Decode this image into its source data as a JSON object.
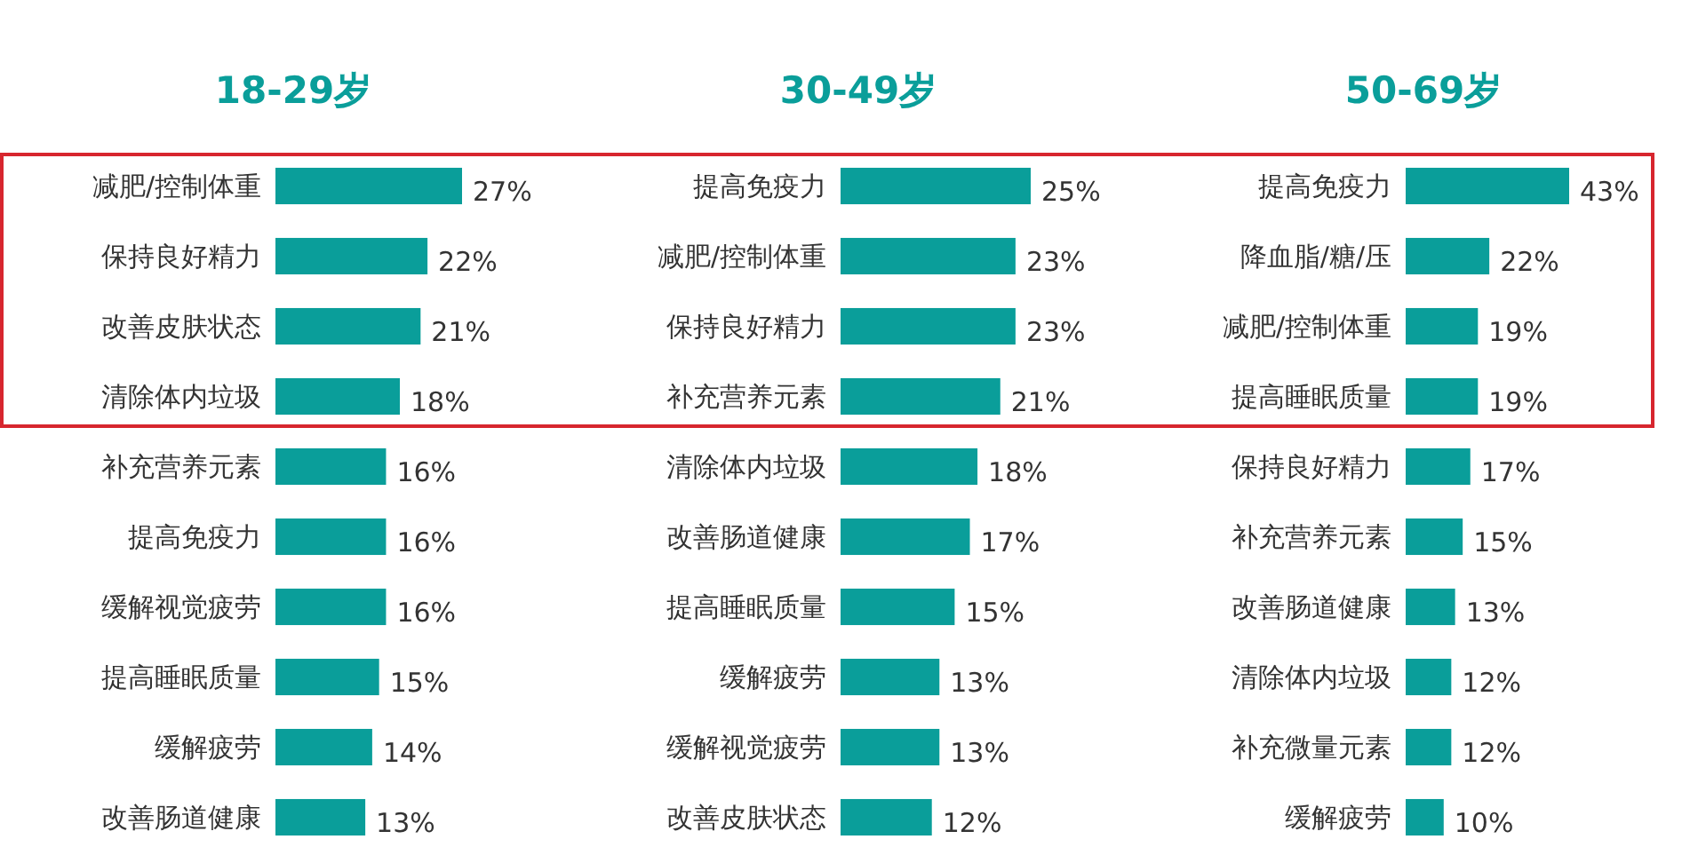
{
  "chart_data": [
    {
      "type": "bar",
      "orientation": "horizontal",
      "title": "18-29岁",
      "categories": [
        "减肥/控制体重",
        "保持良好精力",
        "改善皮肤状态",
        "清除体内垃圾",
        "补充营养元素",
        "提高免疫力",
        "缓解视觉疲劳",
        "提高睡眠质量",
        "缓解疲劳",
        "改善肠道健康"
      ],
      "values": [
        27,
        22,
        21,
        18,
        16,
        16,
        16,
        15,
        14,
        13
      ],
      "value_labels": [
        "27%",
        "22%",
        "21%",
        "18%",
        "16%",
        "16%",
        "16%",
        "15%",
        "14%",
        "13%"
      ],
      "color": "#0a9e9a"
    },
    {
      "type": "bar",
      "orientation": "horizontal",
      "title": "30-49岁",
      "categories": [
        "提高免疫力",
        "减肥/控制体重",
        "保持良好精力",
        "补充营养元素",
        "清除体内垃圾",
        "改善肠道健康",
        "提高睡眠质量",
        "缓解疲劳",
        "缓解视觉疲劳",
        "改善皮肤状态"
      ],
      "values": [
        25,
        23,
        23,
        21,
        18,
        17,
        15,
        13,
        13,
        12
      ],
      "value_labels": [
        "25%",
        "23%",
        "23%",
        "21%",
        "18%",
        "17%",
        "15%",
        "13%",
        "13%",
        "12%"
      ],
      "color": "#0a9e9a"
    },
    {
      "type": "bar",
      "orientation": "horizontal",
      "title": "50-69岁",
      "categories": [
        "提高免疫力",
        "降血脂/糖/压",
        "减肥/控制体重",
        "提高睡眠质量",
        "保持良好精力",
        "补充营养元素",
        "改善肠道健康",
        "清除体内垃圾",
        "补充微量元素",
        "缓解疲劳"
      ],
      "values": [
        43,
        22,
        19,
        19,
        17,
        15,
        13,
        12,
        12,
        10
      ],
      "value_labels": [
        "43%",
        "22%",
        "19%",
        "19%",
        "17%",
        "15%",
        "13%",
        "12%",
        "12%",
        "10%"
      ],
      "color": "#0a9e9a"
    }
  ]
}
